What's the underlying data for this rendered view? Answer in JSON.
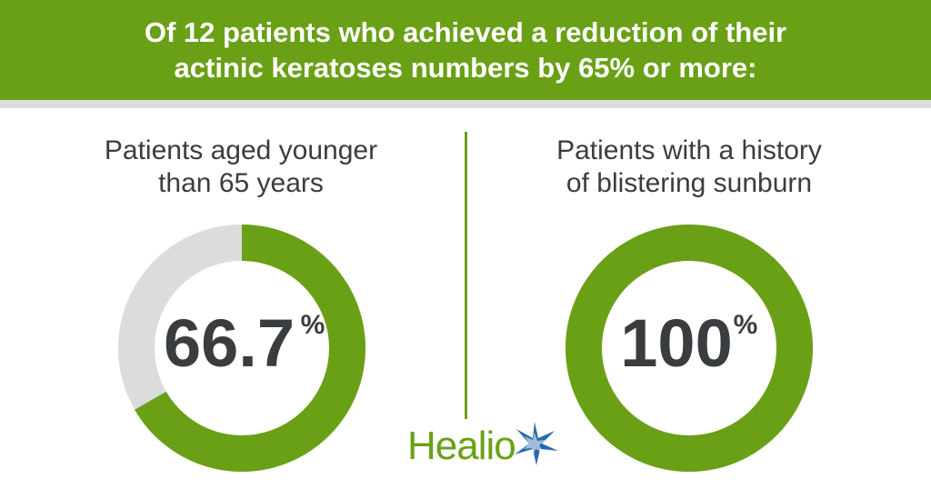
{
  "header": {
    "line1": "Of 12 patients who achieved a reduction of their",
    "line2": "actinic keratoses numbers by 65% or more:"
  },
  "colors": {
    "green": "#6aa016",
    "gray": "#dcdcdc",
    "text": "#3a3d40",
    "blue": "#2a6ab0"
  },
  "chart_data": [
    {
      "type": "pie",
      "title_lines": [
        "Patients aged younger",
        "than 65 years"
      ],
      "value": 66.7,
      "value_label": "66.7",
      "unit": "%",
      "max": 100
    },
    {
      "type": "pie",
      "title_lines": [
        "Patients with a history",
        "of blistering sunburn"
      ],
      "value": 100,
      "value_label": "100",
      "unit": "%",
      "max": 100
    }
  ],
  "logo": {
    "text": "Healio",
    "icon": "star-burst-icon"
  }
}
